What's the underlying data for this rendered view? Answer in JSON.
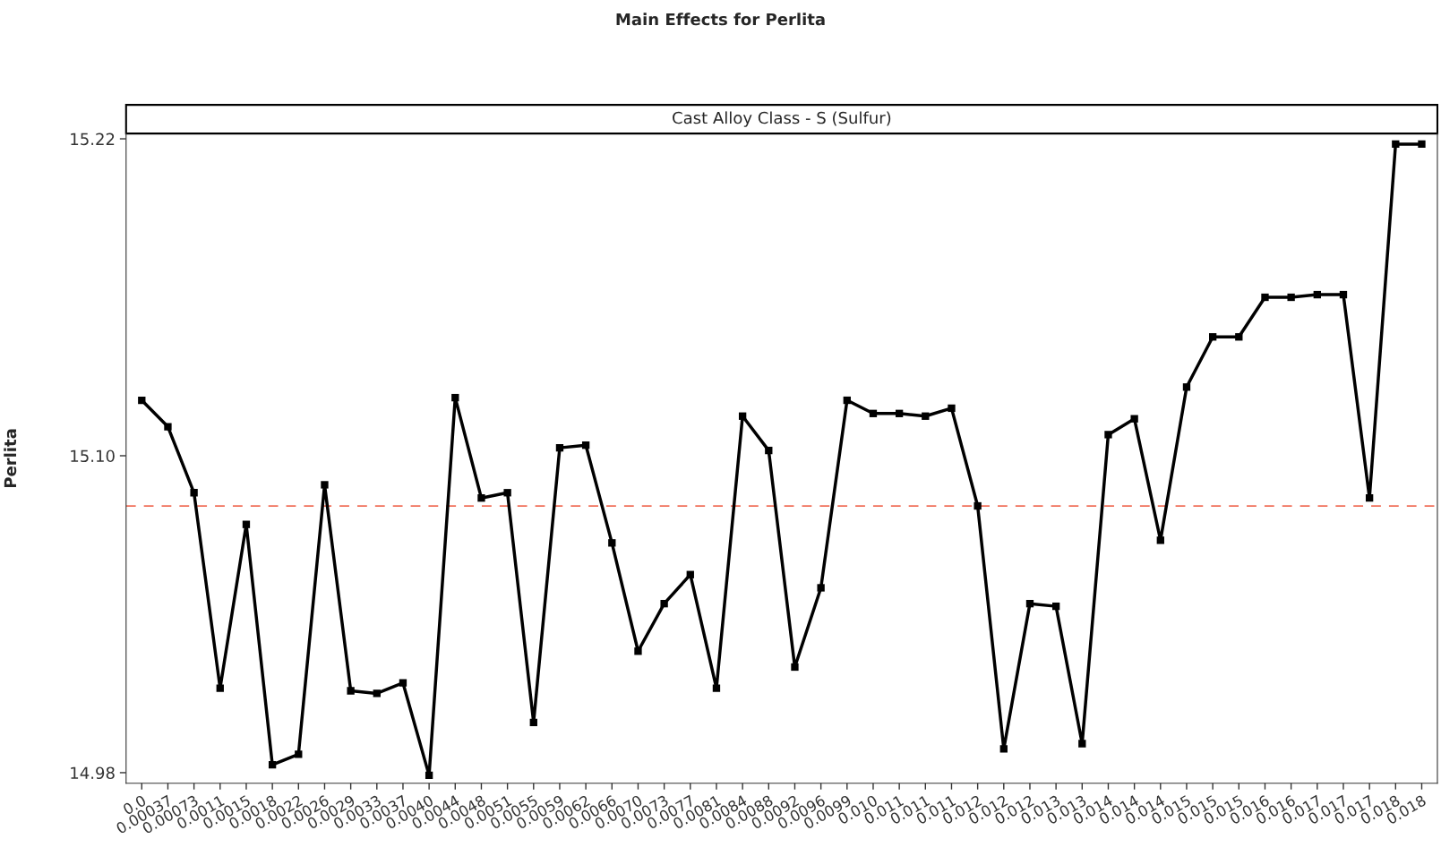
{
  "chart_data": {
    "type": "line",
    "title": "Main Effects for Perlita",
    "subtitle": "Cast Alloy Class - S (Sulfur)",
    "ylabel": "Perlita",
    "categories": [
      "0.0",
      "0.00037",
      "0.00073",
      "0.0011",
      "0.0015",
      "0.0018",
      "0.0022",
      "0.0026",
      "0.0029",
      "0.0033",
      "0.0037",
      "0.0040",
      "0.0044",
      "0.0048",
      "0.0051",
      "0.0055",
      "0.0059",
      "0.0062",
      "0.0066",
      "0.0070",
      "0.0073",
      "0.0077",
      "0.0081",
      "0.0084",
      "0.0088",
      "0.0092",
      "0.0096",
      "0.0099",
      "0.010",
      "0.011",
      "0.011",
      "0.011",
      "0.012",
      "0.012",
      "0.012",
      "0.013",
      "0.013",
      "0.014",
      "0.014",
      "0.014",
      "0.015",
      "0.015",
      "0.015",
      "0.016",
      "0.016",
      "0.017",
      "0.017",
      "0.017",
      "0.018",
      "0.018"
    ],
    "series": [
      {
        "color": "#000000",
        "values": [
          15.121,
          15.111,
          15.086,
          15.012,
          15.074,
          14.983,
          14.987,
          15.089,
          15.011,
          15.01,
          15.014,
          14.979,
          15.122,
          15.084,
          15.086,
          14.999,
          15.103,
          15.104,
          15.067,
          15.026,
          15.044,
          15.055,
          15.012,
          15.115,
          15.102,
          15.02,
          15.05,
          15.121,
          15.116,
          15.116,
          15.115,
          15.118,
          15.081,
          14.989,
          15.044,
          15.043,
          14.991,
          15.108,
          15.114,
          15.068,
          15.126,
          15.145,
          15.145,
          15.16,
          15.16,
          15.161,
          15.161,
          15.084,
          15.218,
          15.218
        ]
      }
    ],
    "ylim": [
      14.976,
      15.222
    ],
    "yticks": [
      {
        "value": 14.98,
        "label": "14.98"
      },
      {
        "value": 15.1,
        "label": "15.10"
      },
      {
        "value": 15.22,
        "label": "15.22"
      }
    ],
    "ref_lines": [
      {
        "axis": "y",
        "value": 15.081,
        "color": "#f0705a",
        "line_style": "dashed"
      }
    ],
    "marker": "square",
    "line_style": "solid",
    "grid": false,
    "legend": false
  }
}
